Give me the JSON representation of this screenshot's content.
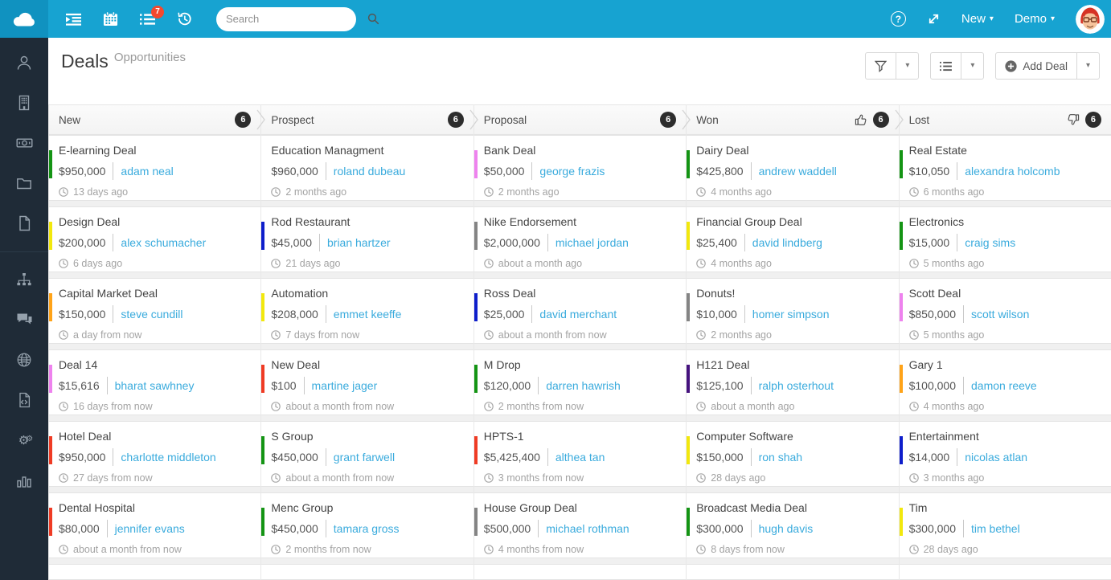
{
  "topbar": {
    "search_placeholder": "Search",
    "tasks_badge": "7",
    "new_label": "New",
    "account_label": "Demo",
    "icons": [
      "cloud-logo",
      "sidebar-toggle-icon",
      "calendar-icon",
      "tasks-icon",
      "history-icon",
      "help-icon",
      "expand-icon",
      "user-avatar"
    ]
  },
  "sidebar": {
    "icons": [
      "user-icon",
      "building-icon",
      "banknote-icon",
      "folder-icon",
      "file-icon",
      "sitemap-icon",
      "chat-icon",
      "globe-icon",
      "file-code-icon",
      "cogs-icon",
      "bar-chart-icon"
    ]
  },
  "page": {
    "title": "Deals",
    "subtitle": "Opportunities",
    "add_button": "Add Deal"
  },
  "colors": {
    "topbar_bg": "#17a3d1",
    "logo_bg": "#1092c0",
    "sidebar_bg": "#1f2b37",
    "link": "#3aabdd",
    "notification_red": "#f4482e",
    "count_badge": "#2d2d2d"
  },
  "board": {
    "columns": [
      {
        "name": "New",
        "count": "6",
        "icon": null,
        "cards": [
          {
            "title": "E-learning Deal",
            "amount": "$950,000",
            "bar": "#149414",
            "contact": "adam neal",
            "when": "13 days ago"
          },
          {
            "title": "Design Deal",
            "amount": "$200,000",
            "bar": "#f2e80d",
            "contact": "alex schumacher",
            "when": "6 days ago"
          },
          {
            "title": "Capital Market Deal",
            "amount": "$150,000",
            "bar": "#ffa318",
            "contact": "steve cundill",
            "when": "a day from now"
          },
          {
            "title": "Deal 14",
            "amount": "$15,616",
            "bar": "#ee82ee",
            "contact": "bharat sawhney",
            "when": "16 days from now"
          },
          {
            "title": "Hotel Deal",
            "amount": "$950,000",
            "bar": "#ef3b24",
            "contact": "charlotte middleton",
            "when": "27 days from now"
          },
          {
            "title": "Dental Hospital",
            "amount": "$80,000",
            "bar": "#ef3b24",
            "contact": "jennifer evans",
            "when": "about a month from now"
          }
        ]
      },
      {
        "name": "Prospect",
        "count": "6",
        "icon": null,
        "cards": [
          {
            "title": "Education Managment",
            "amount": "$960,000",
            "bar": null,
            "contact": "roland dubeau",
            "when": "2 months ago"
          },
          {
            "title": "Rod Restaurant",
            "amount": "$45,000",
            "bar": "#0e1ecb",
            "contact": "brian hartzer",
            "when": "21 days ago"
          },
          {
            "title": "Automation",
            "amount": "$208,000",
            "bar": "#f2e80d",
            "contact": "emmet keeffe",
            "when": "7 days from now"
          },
          {
            "title": "New Deal",
            "amount": "$100",
            "bar": "#ef3b24",
            "contact": "martine jager",
            "when": "about a month from now"
          },
          {
            "title": "S Group",
            "amount": "$450,000",
            "bar": "#149414",
            "contact": "grant farwell",
            "when": "about a month from now"
          },
          {
            "title": "Menc Group",
            "amount": "$450,000",
            "bar": "#149414",
            "contact": "tamara gross",
            "when": "2 months from now"
          }
        ]
      },
      {
        "name": "Proposal",
        "count": "6",
        "icon": null,
        "cards": [
          {
            "title": "Bank Deal",
            "amount": "$50,000",
            "bar": "#ee82ee",
            "contact": "george frazis",
            "when": "2 months ago"
          },
          {
            "title": "Nike Endorsement",
            "amount": "$2,000,000",
            "bar": "#848484",
            "contact": "michael jordan",
            "when": "about a month ago"
          },
          {
            "title": "Ross Deal",
            "amount": "$25,000",
            "bar": "#0e1ecb",
            "contact": "david merchant",
            "when": "about a month from now"
          },
          {
            "title": "M Drop",
            "amount": "$120,000",
            "bar": "#149414",
            "contact": "darren hawrish",
            "when": "2 months from now"
          },
          {
            "title": "HPTS-1",
            "amount": "$5,425,400",
            "bar": "#ef3b24",
            "contact": "althea tan",
            "when": "3 months from now"
          },
          {
            "title": "House Group Deal",
            "amount": "$500,000",
            "bar": "#848484",
            "contact": "michael rothman",
            "when": "4 months from now"
          }
        ]
      },
      {
        "name": "Won",
        "count": "6",
        "icon": "thumbs-up",
        "cards": [
          {
            "title": "Dairy Deal",
            "amount": "$425,800",
            "bar": "#149414",
            "contact": "andrew waddell",
            "when": "4 months ago"
          },
          {
            "title": "Financial Group Deal",
            "amount": "$25,400",
            "bar": "#f2e80d",
            "contact": "david lindberg",
            "when": "4 months ago"
          },
          {
            "title": "Donuts!",
            "amount": "$10,000",
            "bar": "#848484",
            "contact": "homer simpson",
            "when": "2 months ago"
          },
          {
            "title": "H121 Deal",
            "amount": "$125,100",
            "bar": "#45127e",
            "contact": "ralph osterhout",
            "when": "about a month ago"
          },
          {
            "title": "Computer Software",
            "amount": "$150,000",
            "bar": "#f2e80d",
            "contact": "ron shah",
            "when": "28 days ago"
          },
          {
            "title": "Broadcast Media Deal",
            "amount": "$300,000",
            "bar": "#149414",
            "contact": "hugh davis",
            "when": "8 days from now"
          }
        ]
      },
      {
        "name": "Lost",
        "count": "6",
        "icon": "thumbs-down",
        "cards": [
          {
            "title": "Real Estate",
            "amount": "$10,050",
            "bar": "#149414",
            "contact": "alexandra holcomb",
            "when": "6 months ago"
          },
          {
            "title": "Electronics",
            "amount": "$15,000",
            "bar": "#149414",
            "contact": "craig sims",
            "when": "5 months ago"
          },
          {
            "title": "Scott Deal",
            "amount": "$850,000",
            "bar": "#ee82ee",
            "contact": "scott wilson",
            "when": "5 months ago"
          },
          {
            "title": "Gary 1",
            "amount": "$100,000",
            "bar": "#ffa318",
            "contact": "damon reeve",
            "when": "4 months ago"
          },
          {
            "title": "Entertainment",
            "amount": "$14,000",
            "bar": "#0e1ecb",
            "contact": "nicolas atlan",
            "when": "3 months ago"
          },
          {
            "title": "Tim",
            "amount": "$300,000",
            "bar": "#f2e80d",
            "contact": "tim bethel",
            "when": "28 days ago"
          }
        ]
      }
    ]
  }
}
